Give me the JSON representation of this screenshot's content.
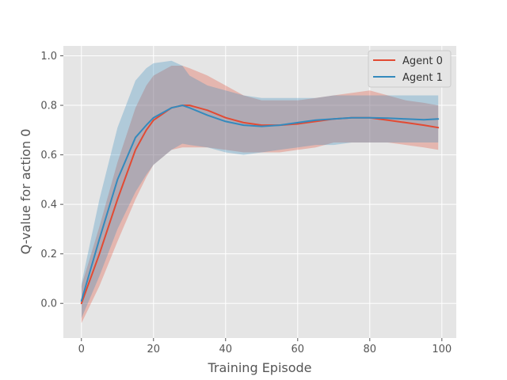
{
  "chart_data": {
    "type": "line",
    "xlabel": "Training Episode",
    "ylabel": "Q-value for action 0",
    "xlim": [
      -5,
      104
    ],
    "ylim": [
      -0.14,
      1.04
    ],
    "xticks": [
      0,
      20,
      40,
      60,
      80,
      100
    ],
    "yticks": [
      0.0,
      0.2,
      0.4,
      0.6,
      0.8,
      1.0
    ],
    "grid": true,
    "legend_position": "top-right",
    "series": [
      {
        "name": "Agent 0",
        "color": "#E24A33",
        "x": [
          0,
          5,
          10,
          15,
          18,
          20,
          25,
          28,
          30,
          35,
          40,
          45,
          50,
          55,
          60,
          65,
          70,
          75,
          80,
          85,
          90,
          95,
          99
        ],
        "values": [
          0.0,
          0.2,
          0.42,
          0.62,
          0.7,
          0.74,
          0.79,
          0.8,
          0.8,
          0.78,
          0.75,
          0.73,
          0.72,
          0.72,
          0.725,
          0.735,
          0.745,
          0.75,
          0.75,
          0.74,
          0.73,
          0.72,
          0.71
        ],
        "upper": [
          0.07,
          0.31,
          0.57,
          0.79,
          0.88,
          0.92,
          0.96,
          0.96,
          0.95,
          0.92,
          0.88,
          0.84,
          0.82,
          0.82,
          0.82,
          0.83,
          0.84,
          0.85,
          0.86,
          0.84,
          0.82,
          0.81,
          0.8
        ],
        "lower": [
          -0.08,
          0.07,
          0.25,
          0.42,
          0.51,
          0.56,
          0.62,
          0.63,
          0.63,
          0.63,
          0.62,
          0.61,
          0.61,
          0.61,
          0.62,
          0.63,
          0.65,
          0.65,
          0.65,
          0.65,
          0.64,
          0.63,
          0.62
        ]
      },
      {
        "name": "Agent 1",
        "color": "#348ABD",
        "x": [
          0,
          5,
          10,
          15,
          18,
          20,
          25,
          28,
          30,
          35,
          40,
          45,
          50,
          55,
          60,
          65,
          70,
          75,
          80,
          85,
          90,
          95,
          99
        ],
        "values": [
          0.01,
          0.26,
          0.5,
          0.67,
          0.72,
          0.75,
          0.79,
          0.8,
          0.79,
          0.76,
          0.735,
          0.72,
          0.715,
          0.72,
          0.73,
          0.74,
          0.745,
          0.75,
          0.75,
          0.748,
          0.745,
          0.742,
          0.745
        ],
        "upper": [
          0.08,
          0.42,
          0.71,
          0.9,
          0.95,
          0.97,
          0.98,
          0.96,
          0.92,
          0.88,
          0.86,
          0.84,
          0.83,
          0.83,
          0.83,
          0.83,
          0.84,
          0.84,
          0.84,
          0.84,
          0.84,
          0.84,
          0.84
        ],
        "lower": [
          -0.06,
          0.11,
          0.3,
          0.45,
          0.52,
          0.56,
          0.62,
          0.645,
          0.64,
          0.63,
          0.61,
          0.6,
          0.61,
          0.62,
          0.63,
          0.64,
          0.64,
          0.65,
          0.65,
          0.65,
          0.65,
          0.65,
          0.65
        ]
      }
    ]
  }
}
